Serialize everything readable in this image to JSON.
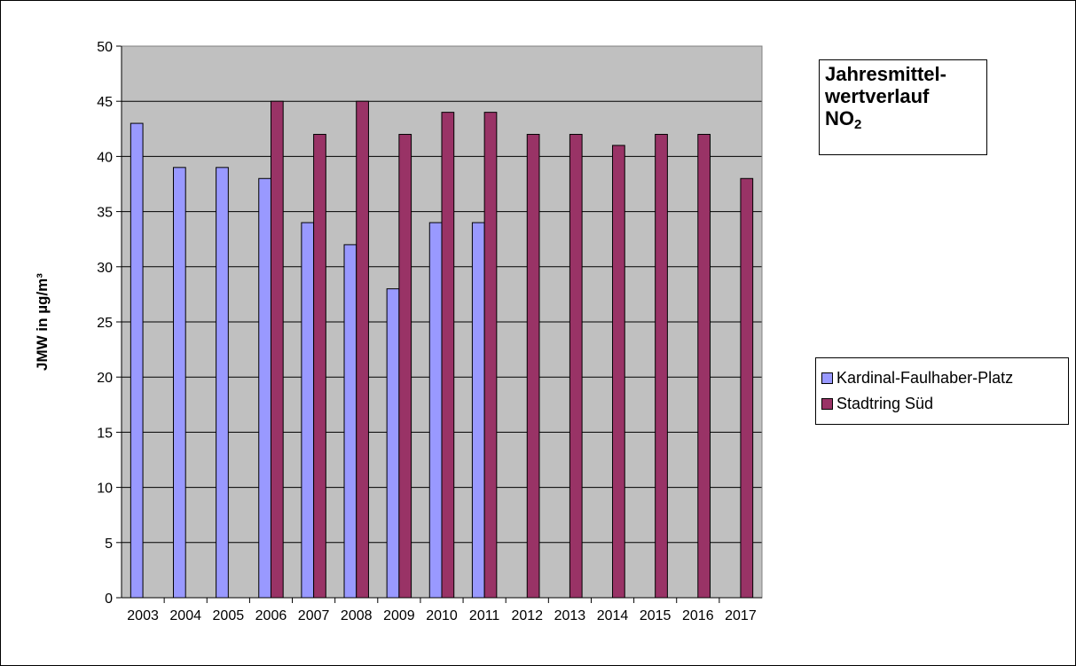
{
  "chart_data": {
    "type": "bar",
    "title_lines": [
      "Jahresmittel-",
      "wertverlauf"
    ],
    "title_formula_main": "NO",
    "title_formula_sub": "2",
    "ylabel": "JMW in µg/m³",
    "xlabel": "",
    "ylim": [
      0,
      50
    ],
    "ytick_step": 5,
    "grid": true,
    "legend_position": "right",
    "plot_background": "#C0C0C0",
    "categories": [
      "2003",
      "2004",
      "2005",
      "2006",
      "2007",
      "2008",
      "2009",
      "2010",
      "2011",
      "2012",
      "2013",
      "2014",
      "2015",
      "2016",
      "2017"
    ],
    "series": [
      {
        "name": "Kardinal-Faulhaber-Platz",
        "color": "#9999FF",
        "values": [
          43,
          39,
          39,
          38,
          34,
          32,
          28,
          34,
          34,
          null,
          null,
          null,
          null,
          null,
          null
        ]
      },
      {
        "name": "Stadtring Süd",
        "color": "#993366",
        "values": [
          null,
          null,
          null,
          45,
          42,
          45,
          42,
          44,
          44,
          42,
          42,
          41,
          42,
          42,
          38
        ]
      }
    ]
  }
}
